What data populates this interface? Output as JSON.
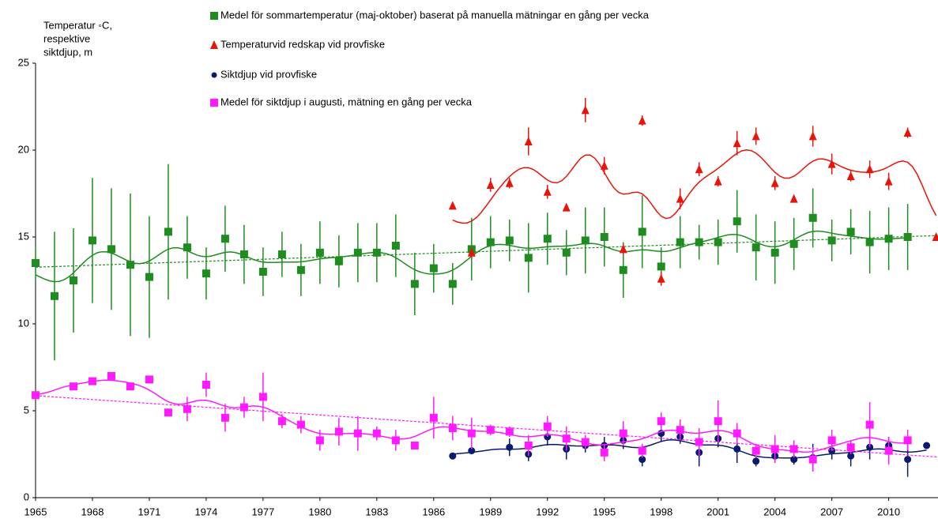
{
  "chart_data": {
    "type": "scatter",
    "y_label": [
      "Temperatur  ◦C,",
      "respektive",
      "siktdjup, m"
    ],
    "xlim": [
      1965,
      2012.6
    ],
    "xticks": [
      1965,
      1968,
      1971,
      1974,
      1977,
      1980,
      1983,
      1986,
      1989,
      1992,
      1995,
      1998,
      2001,
      2004,
      2007,
      2010
    ],
    "ylim": [
      0,
      25
    ],
    "yticks": [
      0,
      5,
      10,
      15,
      20,
      25
    ],
    "series": [
      {
        "name": "Medel för sommartemperatur (maj-oktober) baserat på manuella mätningar en gång per vecka",
        "color": "#1e8c1e",
        "marker": "square",
        "smooth": true,
        "trend": true,
        "x": [
          1965,
          1966,
          1967,
          1968,
          1969,
          1970,
          1971,
          1972,
          1973,
          1974,
          1975,
          1976,
          1977,
          1978,
          1979,
          1980,
          1981,
          1982,
          1983,
          1984,
          1985,
          1986,
          1987,
          1988,
          1989,
          1990,
          1991,
          1992,
          1993,
          1994,
          1995,
          1996,
          1997,
          1998,
          1999,
          2000,
          2001,
          2002,
          2003,
          2004,
          2005,
          2006,
          2007,
          2008,
          2009,
          2010,
          2011
        ],
        "values": [
          13.5,
          11.6,
          12.5,
          14.8,
          14.3,
          13.4,
          12.7,
          15.3,
          14.4,
          12.9,
          14.9,
          14.0,
          13.0,
          14.0,
          13.1,
          14.1,
          13.6,
          14.1,
          14.1,
          14.5,
          12.3,
          13.2,
          12.3,
          14.3,
          14.7,
          14.8,
          13.8,
          14.9,
          14.1,
          14.8,
          15.0,
          13.1,
          15.3,
          13.3,
          14.7,
          14.7,
          14.7,
          15.9,
          14.4,
          14.1,
          14.6,
          16.1,
          14.8,
          15.3,
          14.7,
          14.9,
          15.0
        ],
        "errors": [
          1.0,
          3.7,
          3.0,
          3.6,
          3.5,
          4.1,
          3.5,
          3.9,
          1.8,
          1.5,
          1.9,
          1.7,
          1.4,
          1.3,
          1.5,
          1.8,
          1.5,
          1.7,
          1.7,
          1.8,
          1.8,
          1.4,
          1.2,
          1.8,
          1.5,
          1.2,
          2.0,
          1.5,
          1.3,
          1.9,
          1.7,
          1.6,
          2.1,
          1.1,
          1.5,
          1.0,
          1.3,
          1.8,
          1.9,
          1.8,
          1.5,
          1.7,
          1.2,
          1.3,
          1.8,
          1.8,
          1.9
        ]
      },
      {
        "name": "Temperaturvid redskap vid provfiske",
        "color": "#e8140a",
        "marker": "triangle",
        "smooth": true,
        "trend": false,
        "x": [
          1987,
          1988,
          1989,
          1990,
          1991,
          1992,
          1993,
          1994,
          1995,
          1996,
          1997,
          1998,
          1999,
          2000,
          2001,
          2002,
          2003,
          2004,
          2005,
          2006,
          2007,
          2008,
          2009,
          2010,
          2011,
          2012.5
        ],
        "values": [
          16.8,
          14.1,
          18.0,
          18.1,
          20.5,
          17.6,
          16.7,
          22.3,
          19.1,
          14.3,
          21.7,
          12.6,
          17.2,
          18.9,
          18.2,
          20.4,
          20.8,
          18.1,
          17.2,
          20.8,
          19.2,
          18.5,
          18.9,
          18.2,
          21.0,
          15.0
        ],
        "errors": [
          0,
          0.3,
          0.4,
          0.3,
          0.8,
          0.4,
          0,
          0.7,
          0.5,
          0.3,
          0.3,
          0.4,
          0.6,
          0.4,
          0.3,
          0.7,
          0.5,
          0.4,
          0,
          0.6,
          0.6,
          0.3,
          0.5,
          0.5,
          0.3,
          0
        ]
      },
      {
        "name": "Siktdjup vid provfiske",
        "color": "#0a1a6e",
        "marker": "circle",
        "smooth": true,
        "trend": false,
        "x": [
          1987,
          1988,
          1990,
          1991,
          1992,
          1993,
          1994,
          1995,
          1996,
          1997,
          1998,
          1999,
          2000,
          2001,
          2002,
          2003,
          2004,
          2005,
          2006,
          2007,
          2008,
          2009,
          2010,
          2011,
          2012
        ],
        "values": [
          2.4,
          2.7,
          2.9,
          2.5,
          3.5,
          2.8,
          3.0,
          3.0,
          3.3,
          2.2,
          3.7,
          3.5,
          2.6,
          3.4,
          2.8,
          2.1,
          2.4,
          2.2,
          2.3,
          2.7,
          2.4,
          2.9,
          3.0,
          2.2,
          3.0
        ],
        "errors": [
          0,
          0,
          0.5,
          0.4,
          0.5,
          0.6,
          0.4,
          0.5,
          0.5,
          0.4,
          0.5,
          0.4,
          0.8,
          0.5,
          0.8,
          0.3,
          0.4,
          0.3,
          0.8,
          0.5,
          0.6,
          0.7,
          0.5,
          1.0,
          0
        ]
      },
      {
        "name": "Medel för siktdjup i augusti, mätning en gång per vecka",
        "color": "#ff1aff",
        "marker": "square",
        "smooth": true,
        "trend": true,
        "x": [
          1965,
          1967,
          1968,
          1969,
          1970,
          1971,
          1972,
          1973,
          1974,
          1975,
          1976,
          1977,
          1978,
          1979,
          1980,
          1981,
          1982,
          1983,
          1984,
          1985,
          1986,
          1987,
          1988,
          1989,
          1990,
          1991,
          1992,
          1993,
          1994,
          1995,
          1996,
          1997,
          1998,
          1999,
          2000,
          2001,
          2002,
          2003,
          2004,
          2005,
          2006,
          2007,
          2008,
          2009,
          2010,
          2011
        ],
        "values": [
          5.9,
          6.4,
          6.7,
          7.0,
          6.4,
          6.8,
          4.9,
          5.1,
          6.5,
          4.6,
          5.2,
          5.8,
          4.4,
          4.2,
          3.3,
          3.8,
          3.7,
          3.7,
          3.3,
          3.0,
          4.6,
          4.0,
          3.7,
          3.9,
          3.8,
          3.0,
          4.1,
          3.4,
          3.2,
          2.6,
          3.7,
          2.7,
          4.4,
          3.9,
          3.2,
          4.4,
          3.7,
          2.7,
          2.8,
          2.8,
          2.2,
          3.3,
          2.9,
          4.2,
          2.7,
          3.3
        ],
        "errors": [
          0,
          0,
          0,
          0,
          0,
          0,
          0,
          0.7,
          0.7,
          0.8,
          0.6,
          1.4,
          0.4,
          0.5,
          0.6,
          0.8,
          1.0,
          0.4,
          0.6,
          0,
          1.2,
          0.7,
          0.9,
          0.3,
          0.3,
          0.6,
          0.6,
          0.7,
          0.4,
          0.5,
          0.7,
          0.4,
          0.5,
          0.6,
          0.8,
          1.2,
          0.6,
          0.4,
          0.8,
          0.5,
          0.7,
          0.6,
          0.4,
          1.3,
          0.8,
          0.6
        ]
      }
    ]
  }
}
